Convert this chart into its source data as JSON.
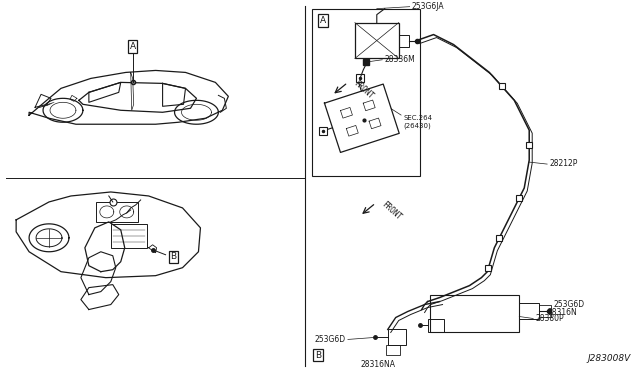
{
  "bg_color": "#ffffff",
  "line_color": "#1a1a1a",
  "label_A": "A",
  "label_B": "B",
  "part_28336M": "28336M",
  "part_sec264": "SEC.264\n(26430)",
  "part_253G6JA": "253G6JA",
  "part_28212P": "28212P",
  "part_front": "FRONT",
  "part_253G6D_1": "253G6D",
  "part_28316N": "28316N",
  "part_28380P": "28380P",
  "part_253G6D_2": "253G6D",
  "part_28316NA": "28316NA",
  "footer": "J283008V"
}
